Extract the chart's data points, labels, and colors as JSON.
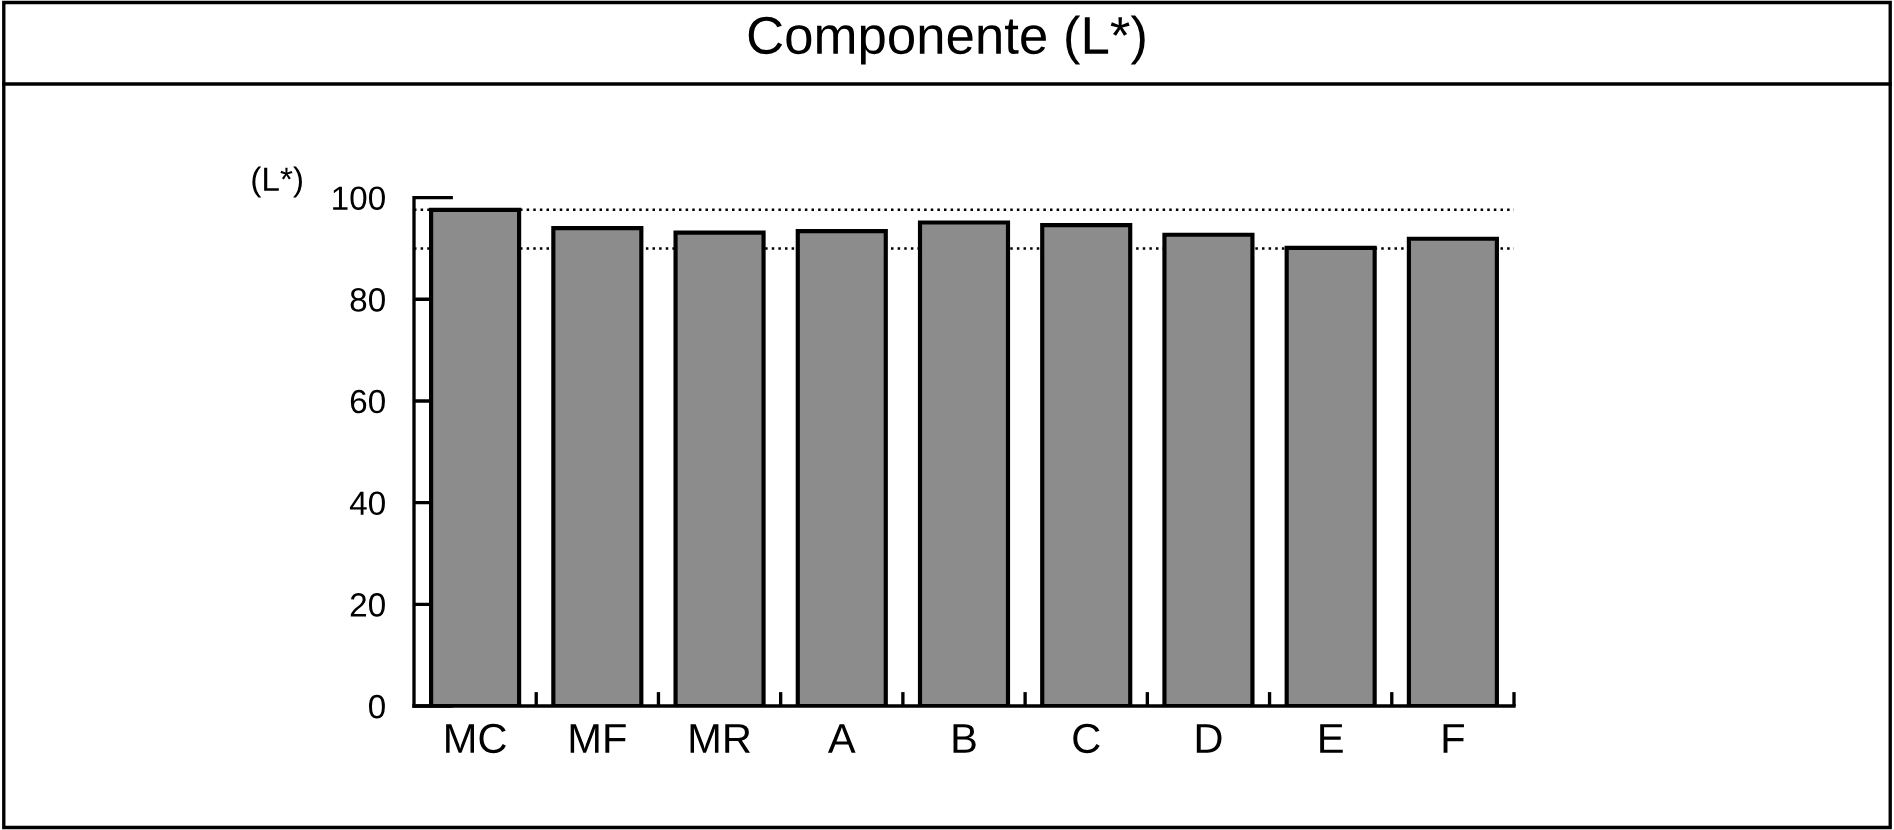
{
  "chart_data": {
    "type": "bar",
    "title": "Componente (L*)",
    "ylabel": "(L*)",
    "categories": [
      "MC",
      "MF",
      "MR",
      "A",
      "B",
      "C",
      "D",
      "E",
      "F"
    ],
    "values": [
      97.6,
      94.0,
      93.1,
      93.4,
      95.1,
      94.6,
      92.7,
      90.1,
      91.9
    ],
    "color": "#8c8c8c",
    "ylim": [
      0,
      100
    ],
    "yticks": [
      0,
      20,
      40,
      60,
      80,
      100
    ],
    "grid": false,
    "legend": false,
    "ref_lines": [
      {
        "axis": "y",
        "value": 97.6,
        "line_style": "dotted",
        "color": "#000000"
      },
      {
        "axis": "y",
        "value": 90,
        "line_style": "dotted",
        "color": "#000000"
      }
    ]
  }
}
